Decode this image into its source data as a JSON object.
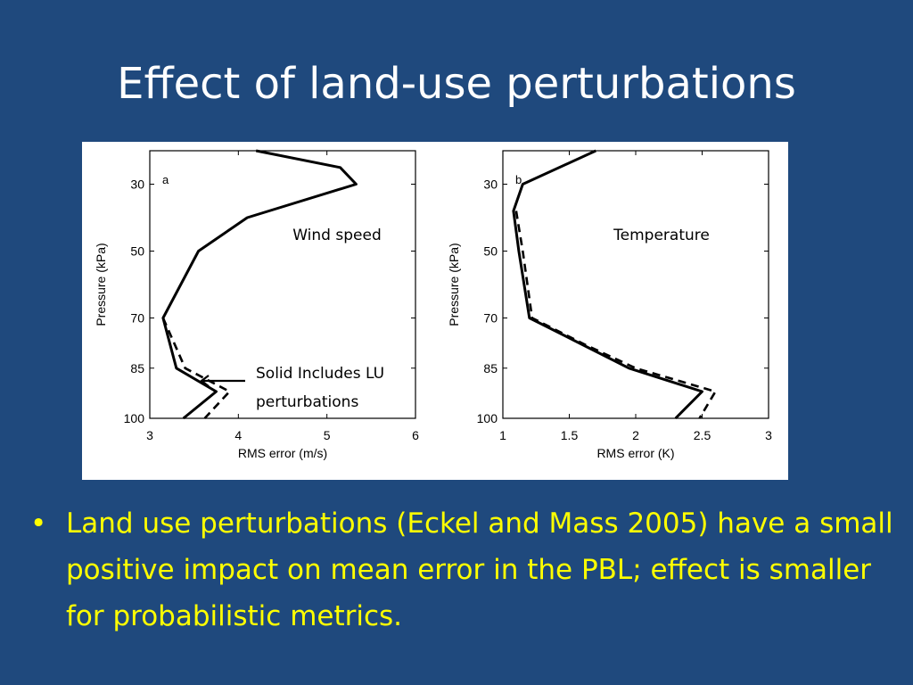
{
  "slide": {
    "title": "Effect of land-use perturbations",
    "bullet": "Land use perturbations (Eckel and Mass 2005) have a small positive impact on mean error in the PBL; effect is smaller for probabilistic metrics.",
    "bullet_symbol": "•",
    "colors": {
      "background": "#1f497d",
      "title": "#ffffff",
      "bullet": "#ffff00",
      "panel": "#ffffff"
    }
  },
  "chart_data": [
    {
      "type": "line",
      "panel_letter": "a",
      "annotation": "Wind speed",
      "xlabel": "RMS error (m/s)",
      "ylabel": "Pressure (kPa)",
      "xlim": [
        3,
        6
      ],
      "ylim": [
        20,
        100
      ],
      "y_inverted": true,
      "xticks": [
        3,
        4,
        5,
        6
      ],
      "yticks": [
        30,
        50,
        70,
        85,
        100
      ],
      "series": [
        {
          "style": "solid",
          "x": [
            4.2,
            5.15,
            5.33,
            4.1,
            3.55,
            3.15,
            3.3,
            3.75,
            3.38
          ],
          "y": [
            20,
            25,
            30,
            40,
            50,
            70,
            85,
            92,
            100
          ]
        },
        {
          "style": "dashed",
          "x": [
            3.15,
            3.4,
            3.9,
            3.62
          ],
          "y": [
            70,
            85,
            92,
            100
          ]
        }
      ],
      "callout": {
        "line1": "Solid Includes LU",
        "line2": "perturbations"
      }
    },
    {
      "type": "line",
      "panel_letter": "b",
      "annotation": "Temperature",
      "xlabel": "RMS error (K)",
      "ylabel": "Pressure (kPa)",
      "xlim": [
        1,
        3
      ],
      "ylim": [
        20,
        100
      ],
      "y_inverted": true,
      "xticks": [
        1,
        1.5,
        2,
        2.5,
        3
      ],
      "xtick_labels": [
        "1",
        "1.5",
        "2",
        "2.5",
        "3"
      ],
      "yticks": [
        30,
        50,
        70,
        85,
        100
      ],
      "series": [
        {
          "style": "solid",
          "x": [
            1.7,
            1.15,
            1.08,
            1.12,
            1.2,
            1.6,
            1.95,
            2.5,
            2.3
          ],
          "y": [
            20,
            30,
            38,
            50,
            70,
            78,
            85,
            92,
            100
          ]
        },
        {
          "style": "dashed",
          "x": [
            1.1,
            1.15,
            1.22,
            1.62,
            2.0,
            2.6,
            2.48
          ],
          "y": [
            38,
            50,
            70,
            78,
            85,
            92,
            100
          ]
        }
      ]
    }
  ]
}
